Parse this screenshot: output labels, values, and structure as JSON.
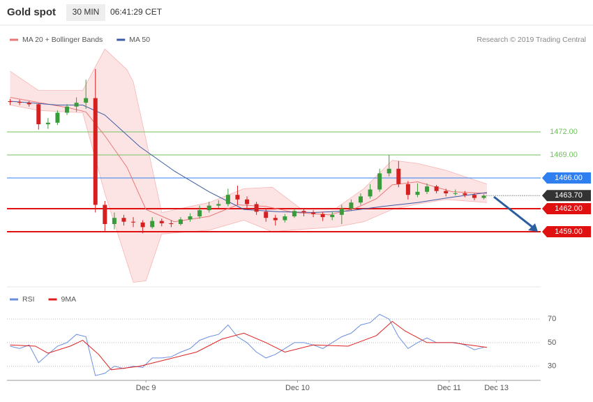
{
  "header": {
    "title": "Gold spot",
    "interval": "30 MIN",
    "time": "06:41:29 CET"
  },
  "chart_data": [
    {
      "type": "candlestick",
      "xlim": [
        0,
        169
      ],
      "ylim": [
        1452,
        1484
      ],
      "up_color": "#3a9b3a",
      "down_color": "#d42020",
      "credit": "Research © 2019 Trading Central",
      "x": [
        1,
        4,
        7,
        10,
        13,
        16,
        19,
        22,
        25,
        28,
        31,
        34,
        37,
        40,
        43,
        46,
        49,
        52,
        55,
        58,
        61,
        64,
        67,
        70,
        73,
        76,
        79,
        82,
        85,
        88,
        91,
        94,
        97,
        100,
        103,
        106,
        109,
        112,
        115,
        118,
        121,
        124,
        127,
        130,
        133,
        136,
        139,
        142,
        145,
        148,
        151
      ],
      "candles": [
        [
          1476.0,
          1476.3,
          1475.5,
          1475.9
        ],
        [
          1475.9,
          1476.2,
          1475.5,
          1475.8
        ],
        [
          1475.8,
          1476.0,
          1475.3,
          1475.6
        ],
        [
          1475.6,
          1475.7,
          1472.3,
          1473.0
        ],
        [
          1473.0,
          1473.8,
          1472.4,
          1473.2
        ],
        [
          1473.2,
          1474.8,
          1472.9,
          1474.5
        ],
        [
          1474.5,
          1475.6,
          1474.2,
          1475.3
        ],
        [
          1475.3,
          1476.5,
          1474.6,
          1475.8
        ],
        [
          1475.8,
          1478.8,
          1475.0,
          1476.4
        ],
        [
          1476.4,
          1480.2,
          1461.5,
          1462.5
        ],
        [
          1462.5,
          1463.0,
          1459.0,
          1460.0
        ],
        [
          1460.0,
          1461.5,
          1459.3,
          1460.8
        ],
        [
          1460.8,
          1461.2,
          1459.8,
          1460.3
        ],
        [
          1460.3,
          1460.9,
          1459.6,
          1460.2
        ],
        [
          1460.2,
          1460.5,
          1458.8,
          1459.6
        ],
        [
          1459.6,
          1460.9,
          1459.4,
          1460.4
        ],
        [
          1460.4,
          1460.7,
          1459.7,
          1460.1
        ],
        [
          1460.1,
          1460.5,
          1459.6,
          1460.0
        ],
        [
          1460.0,
          1460.9,
          1459.8,
          1460.6
        ],
        [
          1460.6,
          1461.4,
          1460.3,
          1461.0
        ],
        [
          1461.0,
          1462.4,
          1460.7,
          1461.8
        ],
        [
          1461.8,
          1462.9,
          1461.5,
          1462.4
        ],
        [
          1462.4,
          1463.1,
          1462.1,
          1462.6
        ],
        [
          1462.6,
          1464.6,
          1462.3,
          1463.8
        ],
        [
          1463.8,
          1465.0,
          1462.5,
          1463.2
        ],
        [
          1463.2,
          1463.6,
          1462.0,
          1462.6
        ],
        [
          1462.6,
          1462.9,
          1461.2,
          1461.6
        ],
        [
          1461.6,
          1462.0,
          1460.3,
          1460.8
        ],
        [
          1460.8,
          1461.2,
          1459.8,
          1460.5
        ],
        [
          1460.5,
          1461.3,
          1460.2,
          1461.0
        ],
        [
          1461.0,
          1462.0,
          1460.8,
          1461.7
        ],
        [
          1461.7,
          1462.0,
          1461.0,
          1461.5
        ],
        [
          1461.5,
          1461.8,
          1460.9,
          1461.3
        ],
        [
          1461.3,
          1461.6,
          1460.4,
          1460.9
        ],
        [
          1460.9,
          1461.6,
          1460.5,
          1461.2
        ],
        [
          1461.2,
          1462.5,
          1460.0,
          1462.0
        ],
        [
          1462.0,
          1463.2,
          1461.7,
          1462.8
        ],
        [
          1462.8,
          1464.0,
          1462.5,
          1463.6
        ],
        [
          1463.6,
          1465.2,
          1463.3,
          1464.5
        ],
        [
          1464.5,
          1467.2,
          1464.2,
          1466.6
        ],
        [
          1466.6,
          1469.0,
          1466.2,
          1467.2
        ],
        [
          1467.2,
          1468.2,
          1464.8,
          1465.2
        ],
        [
          1465.2,
          1465.6,
          1463.2,
          1463.8
        ],
        [
          1463.8,
          1465.3,
          1463.5,
          1464.2
        ],
        [
          1464.2,
          1465.3,
          1463.9,
          1464.9
        ],
        [
          1464.9,
          1465.1,
          1464.0,
          1464.3
        ],
        [
          1464.3,
          1464.6,
          1463.6,
          1464.0
        ],
        [
          1464.0,
          1464.5,
          1463.7,
          1464.0
        ],
        [
          1464.0,
          1464.3,
          1463.5,
          1463.8
        ],
        [
          1463.8,
          1464.0,
          1463.1,
          1463.4
        ],
        [
          1463.4,
          1463.9,
          1463.2,
          1463.7
        ]
      ],
      "band": {
        "color": "#f7b5b5",
        "fill": "#fde4e4",
        "x": [
          1,
          10,
          24,
          31,
          38,
          40,
          44,
          49,
          64,
          75,
          84,
          93,
          104,
          113,
          122,
          130,
          139,
          152
        ],
        "upper": [
          1479.9,
          1477.4,
          1477.4,
          1482.8,
          1480.1,
          1478.5,
          1471,
          1461.5,
          1462.8,
          1464.6,
          1464.8,
          1462,
          1462,
          1464.6,
          1468.3,
          1467.9,
          1467,
          1465.2
        ],
        "lower": [
          1475.5,
          1474.8,
          1474.5,
          1464,
          1455,
          1452.4,
          1452.6,
          1458.7,
          1459.2,
          1460.5,
          1459,
          1459.3,
          1459.6,
          1460.3,
          1461.9,
          1462.6,
          1463.2,
          1462.8
        ]
      },
      "series": [
        {
          "name": "MA 20 + Bollinger Bands",
          "color": "#e87878",
          "x": [
            1,
            20,
            25,
            31,
            38,
            44,
            53,
            64,
            73,
            82,
            91,
            102,
            110,
            117,
            122,
            130,
            141,
            152
          ],
          "values": [
            1476.5,
            1475.1,
            1474.6,
            1471.5,
            1467.4,
            1461.9,
            1460.3,
            1461,
            1462.5,
            1462.3,
            1461.5,
            1461.2,
            1462,
            1463.3,
            1465.1,
            1465.5,
            1464.2,
            1464
          ]
        },
        {
          "name": "MA 50",
          "color": "#3b5ba5",
          "x": [
            1,
            16,
            24,
            31,
            42,
            53,
            64,
            75,
            86,
            97,
            108,
            119,
            130,
            141,
            152
          ],
          "values": [
            1476,
            1475.5,
            1475.5,
            1474.2,
            1470.1,
            1466.9,
            1464.2,
            1461.9,
            1461.6,
            1461.5,
            1461.7,
            1462.3,
            1462.8,
            1463.5,
            1464.1
          ]
        }
      ],
      "levels": [
        {
          "value": 1472,
          "label": "1472.00",
          "color": "#72c05f",
          "style": "text"
        },
        {
          "value": 1469,
          "label": "1469.00",
          "color": "#72c05f",
          "style": "text"
        },
        {
          "value": 1466,
          "label": "1466.00",
          "color": "#2f7ff0",
          "style": "box"
        },
        {
          "value": 1462,
          "label": "1462.00",
          "color": "#e01010",
          "style": "box"
        },
        {
          "value": 1459,
          "label": "1459.00",
          "color": "#e01010",
          "style": "box"
        }
      ],
      "last": {
        "value": 1463.7,
        "label": "1463.70",
        "color": "#333333"
      }
    },
    {
      "type": "line",
      "xlim": [
        0,
        169
      ],
      "ylim": [
        18,
        92
      ],
      "yticks": [
        70,
        50,
        30
      ],
      "xticks": [
        {
          "value": 44,
          "label": "Dec 9"
        },
        {
          "value": 92,
          "label": "Dec 10"
        },
        {
          "value": 140,
          "label": "Dec 11"
        },
        {
          "value": 155,
          "label": "Dec 13"
        }
      ],
      "series": [
        {
          "name": "RSI",
          "color": "#6b8fde",
          "x": [
            1,
            4,
            7,
            10,
            13,
            16,
            19,
            22,
            25,
            28,
            31,
            34,
            37,
            40,
            43,
            46,
            49,
            52,
            55,
            58,
            61,
            64,
            67,
            70,
            73,
            76,
            79,
            82,
            85,
            88,
            91,
            94,
            97,
            100,
            103,
            106,
            109,
            112,
            115,
            118,
            121,
            124,
            127,
            130,
            133,
            136,
            139,
            142,
            145,
            148,
            151
          ],
          "values": [
            47,
            45,
            48,
            33,
            40,
            47,
            50,
            57,
            55,
            22,
            24,
            30,
            28,
            30,
            29,
            37,
            37,
            38,
            42,
            45,
            52,
            55,
            57,
            65,
            55,
            50,
            42,
            37,
            40,
            45,
            50,
            50,
            48,
            45,
            50,
            55,
            58,
            65,
            67,
            74,
            70,
            55,
            45,
            50,
            54,
            50,
            50,
            50,
            48,
            44,
            46
          ]
        },
        {
          "name": "9MA",
          "color": "#e02020",
          "x": [
            1,
            9,
            13,
            20,
            24,
            29,
            33,
            42,
            51,
            60,
            68,
            75,
            82,
            88,
            97,
            108,
            117,
            122,
            126,
            133,
            141,
            152
          ],
          "values": [
            48,
            47,
            41,
            47,
            52,
            40,
            27,
            30,
            36,
            42,
            53,
            58,
            50,
            42,
            48,
            47,
            56,
            68,
            60,
            50,
            50,
            46
          ]
        }
      ]
    }
  ]
}
